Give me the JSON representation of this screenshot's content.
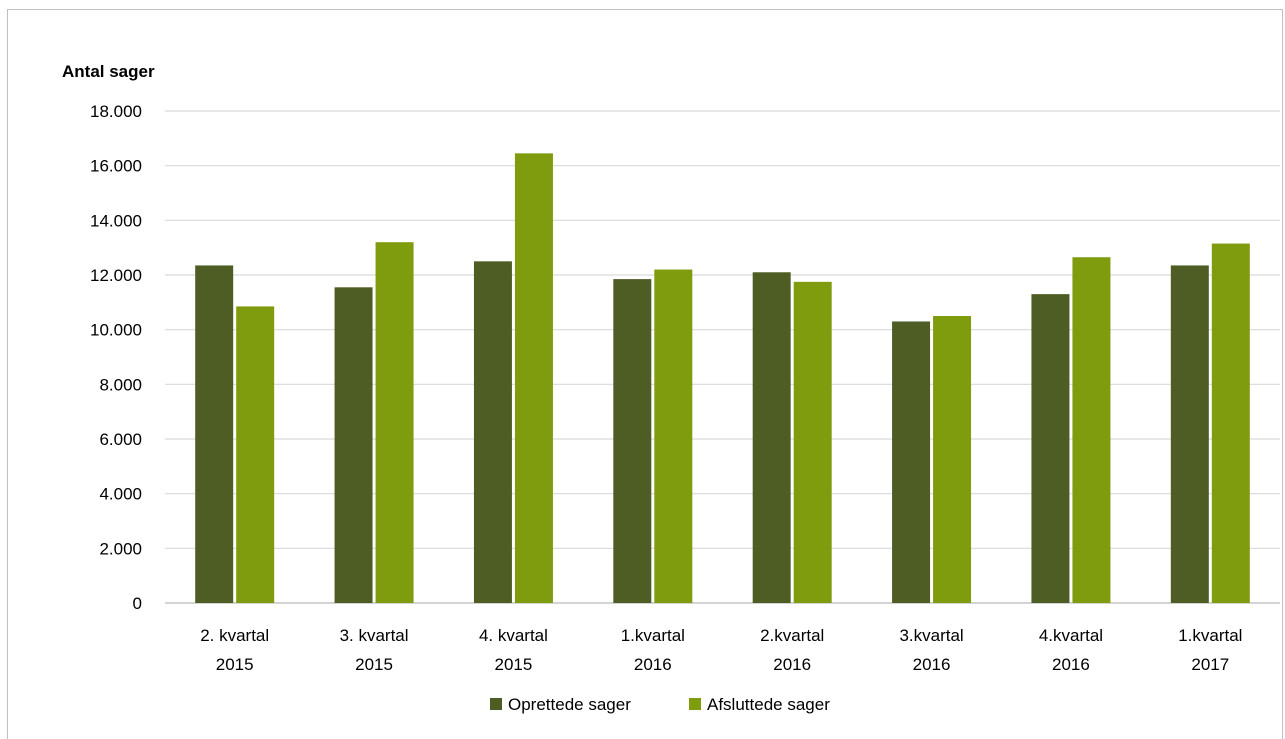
{
  "chart_data": {
    "type": "bar",
    "title": "",
    "ylabel": "Antal sager",
    "xlabel": "",
    "ylim": [
      0,
      18000
    ],
    "yticks": [
      0,
      2000,
      4000,
      6000,
      8000,
      10000,
      12000,
      14000,
      16000,
      18000
    ],
    "ytick_labels": [
      "0",
      "2.000",
      "4.000",
      "6.000",
      "8.000",
      "10.000",
      "12.000",
      "14.000",
      "16.000",
      "18.000"
    ],
    "categories": [
      [
        "2. kvartal",
        "2015"
      ],
      [
        "3. kvartal",
        "2015"
      ],
      [
        "4. kvartal",
        "2015"
      ],
      [
        "1.kvartal",
        "2016"
      ],
      [
        "2.kvartal",
        "2016"
      ],
      [
        "3.kvartal",
        "2016"
      ],
      [
        "4.kvartal",
        "2016"
      ],
      [
        "1.kvartal",
        "2017"
      ]
    ],
    "series": [
      {
        "name": "Oprettede sager",
        "color": "#4e5d23",
        "values": [
          12350,
          11550,
          12500,
          11850,
          12100,
          10300,
          11300,
          12350
        ]
      },
      {
        "name": "Afsluttede sager",
        "color": "#7f9b0e",
        "values": [
          10850,
          13200,
          16450,
          12200,
          11750,
          10500,
          12650,
          13150
        ]
      }
    ],
    "grid": true,
    "legend_position": "bottom"
  }
}
